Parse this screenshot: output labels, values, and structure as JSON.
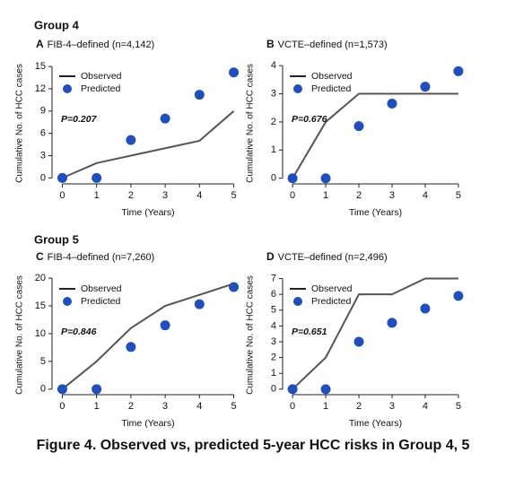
{
  "group_labels": [
    "Group 4",
    "Group 5"
  ],
  "caption": "Figure 4. Observed vs, predicted 5-year HCC risks in Group 4, 5",
  "chart_data": [
    {
      "type": "line",
      "panel": "A",
      "title": "FIB-4–defined (n=4,142)",
      "x_label": "Time (Years)",
      "y_label": "Cumulative No. of HCC cases",
      "annotation": "P=0.207",
      "legend": "upper left",
      "x": [
        0,
        1,
        2,
        3,
        4,
        5
      ],
      "xlim": [
        -0.3,
        5.3
      ],
      "xticks": [
        0,
        1,
        2,
        3,
        4,
        5
      ],
      "ylim": [
        -0.8,
        15.5
      ],
      "yticks": [
        0,
        3,
        6,
        9,
        12,
        15
      ],
      "series": [
        {
          "name": "Observed",
          "type": "line",
          "color": "#555555",
          "values": [
            0,
            2,
            3,
            4,
            5,
            9
          ]
        },
        {
          "name": "Predicted",
          "type": "scatter",
          "color": "#1f4fbf",
          "values": [
            0,
            0,
            5.1,
            8,
            11.2,
            14.2
          ]
        }
      ]
    },
    {
      "type": "line",
      "panel": "B",
      "title": "VCTE–defined (n=1,573)",
      "x_label": "Time (Years)",
      "y_label": "Cumulative No. of HCC cases",
      "annotation": "P=0.676",
      "legend": "upper left",
      "x": [
        0,
        1,
        2,
        3,
        4,
        5
      ],
      "xlim": [
        -0.3,
        5.3
      ],
      "xticks": [
        0,
        1,
        2,
        3,
        4,
        5
      ],
      "ylim": [
        -0.2,
        4.1
      ],
      "yticks": [
        0,
        1,
        2,
        3,
        4
      ],
      "series": [
        {
          "name": "Observed",
          "type": "line",
          "color": "#555555",
          "values": [
            0,
            2,
            3,
            3,
            3,
            3
          ]
        },
        {
          "name": "Predicted",
          "type": "scatter",
          "color": "#1f4fbf",
          "values": [
            0,
            0,
            1.85,
            2.65,
            3.25,
            3.8
          ]
        }
      ]
    },
    {
      "type": "line",
      "panel": "C",
      "title": "FIB-4–defined (n=7,260)",
      "x_label": "Time (Years)",
      "y_label": "Cumulative No. of HCC cases",
      "annotation": "P=0.846",
      "legend": "upper left",
      "x": [
        0,
        1,
        2,
        3,
        4,
        5
      ],
      "xlim": [
        -0.3,
        5.3
      ],
      "xticks": [
        0,
        1,
        2,
        3,
        4,
        5
      ],
      "ylim": [
        -1,
        20.5
      ],
      "yticks": [
        0,
        5,
        10,
        15,
        20
      ],
      "series": [
        {
          "name": "Observed",
          "type": "line",
          "color": "#555555",
          "values": [
            0,
            5,
            11,
            15,
            17,
            19
          ]
        },
        {
          "name": "Predicted",
          "type": "scatter",
          "color": "#1f4fbf",
          "values": [
            0,
            0,
            7.6,
            11.5,
            15.3,
            18.4
          ]
        }
      ]
    },
    {
      "type": "line",
      "panel": "D",
      "title": "VCTE–defined (n=2,496)",
      "x_label": "Time (Years)",
      "y_label": "Cumulative No. of HCC cases",
      "annotation": "P=0.651",
      "legend": "upper left",
      "x": [
        0,
        1,
        2,
        3,
        4,
        5
      ],
      "xlim": [
        -0.3,
        5.3
      ],
      "xticks": [
        0,
        1,
        2,
        3,
        4,
        5
      ],
      "ylim": [
        -0.35,
        7.2
      ],
      "yticks": [
        0,
        1,
        2,
        3,
        4,
        5,
        6,
        7
      ],
      "series": [
        {
          "name": "Observed",
          "type": "line",
          "color": "#555555",
          "values": [
            0,
            2,
            6,
            6,
            7,
            7
          ]
        },
        {
          "name": "Predicted",
          "type": "scatter",
          "color": "#1f4fbf",
          "values": [
            0,
            0,
            3,
            4.2,
            5.1,
            5.9
          ]
        }
      ]
    }
  ]
}
